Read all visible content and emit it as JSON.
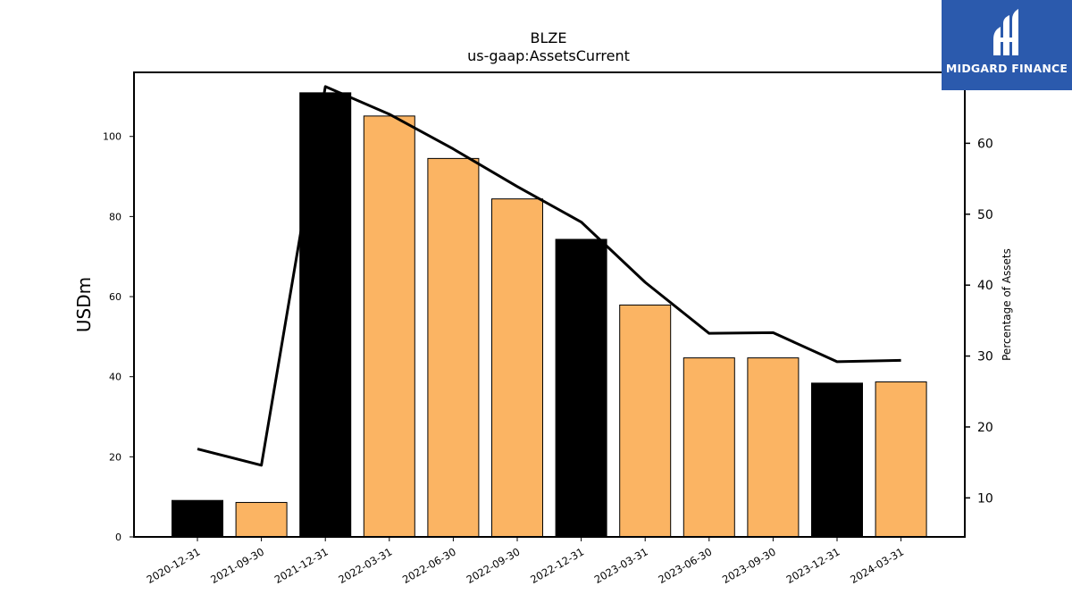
{
  "chart_data": {
    "type": "bar",
    "title": "BLZE",
    "subtitle": "us-gaap:AssetsCurrent",
    "ylabel": "USDm",
    "y2label": "Percentage of Assets",
    "ylim": [
      0,
      116
    ],
    "y2lim": [
      4.5,
      70
    ],
    "yticks": [
      0,
      20,
      40,
      60,
      80,
      100
    ],
    "y2ticks": [
      10,
      20,
      30,
      40,
      50,
      60
    ],
    "categories": [
      "2020-12-31",
      "2021-09-30",
      "2021-12-31",
      "2022-03-31",
      "2022-06-30",
      "2022-09-30",
      "2022-12-31",
      "2023-03-31",
      "2023-06-30",
      "2023-09-30",
      "2023-12-31",
      "2024-03-31"
    ],
    "values": [
      9.1,
      8.6,
      110.9,
      105.1,
      94.5,
      84.4,
      74.3,
      57.9,
      44.7,
      44.7,
      38.4,
      38.7
    ],
    "bar_colors": [
      "#000000",
      "#fbb463",
      "#000000",
      "#fbb463",
      "#fbb463",
      "#fbb463",
      "#000000",
      "#fbb463",
      "#fbb463",
      "#fbb463",
      "#000000",
      "#fbb463"
    ],
    "line_values": [
      16.9,
      14.6,
      68.0,
      64.1,
      59.2,
      53.9,
      48.9,
      40.4,
      33.2,
      33.3,
      29.2,
      29.4
    ],
    "line_color": "#000000"
  },
  "logo": {
    "text": "MIDGARD FINANCE"
  }
}
